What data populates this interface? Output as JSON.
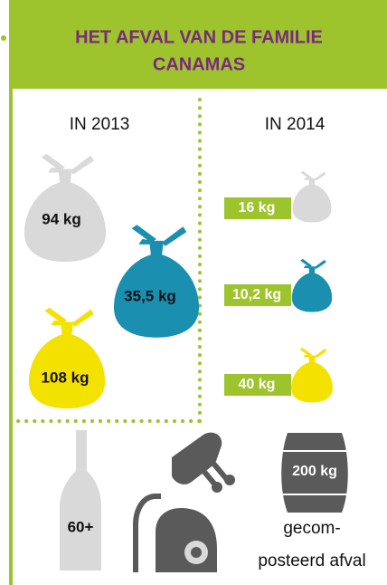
{
  "header": {
    "title_lines": [
      "HET AFVAL VAN DE FAMILIE",
      "CANAMAS"
    ]
  },
  "year_2013": {
    "heading": "IN 2013",
    "bags": [
      "94 kg",
      "35,5 kg",
      "108 kg"
    ]
  },
  "year_2014": {
    "heading": "IN 2014",
    "bags": [
      "16 kg",
      "10,2 kg",
      "40 kg"
    ]
  },
  "other": {
    "bottles": "60+",
    "compost": "200 kg",
    "compost_label_lines": [
      "gecom-",
      "posteerd afval"
    ]
  }
}
